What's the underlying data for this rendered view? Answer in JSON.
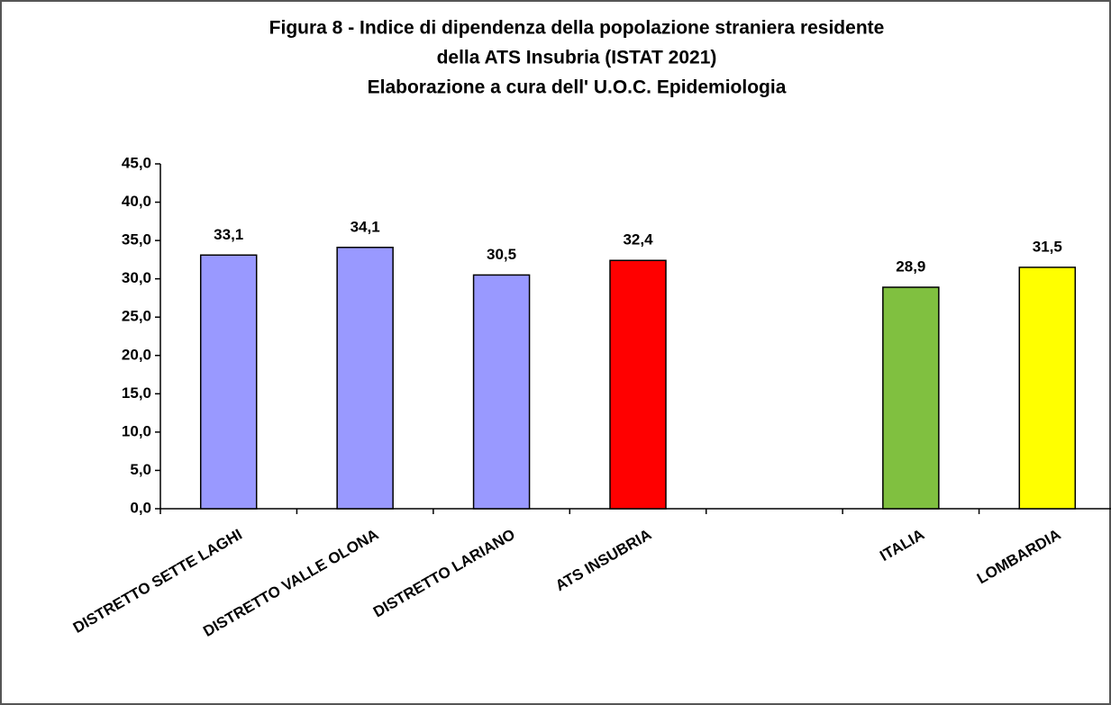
{
  "chart_data": {
    "type": "bar",
    "title": [
      "Figura  8 - Indice di dipendenza della popolazione straniera residente",
      "della  ATS Insubria (ISTAT 2021)",
      "Elaborazione a cura dell' U.O.C. Epidemiologia"
    ],
    "categories": [
      "DISTRETTO SETTE LAGHI",
      "DISTRETTO VALLE OLONA",
      "DISTRETTO LARIANO",
      "ATS INSUBRIA",
      null,
      "ITALIA",
      "LOMBARDIA"
    ],
    "values": [
      33.1,
      34.1,
      30.5,
      32.4,
      null,
      28.9,
      31.5
    ],
    "value_labels": [
      "33,1",
      "34,1",
      "30,5",
      "32,4",
      null,
      "28,9",
      "31,5"
    ],
    "colors": [
      "#9999ff",
      "#9999ff",
      "#9999ff",
      "#ff0000",
      null,
      "#80c040",
      "#ffff00"
    ],
    "ylim": [
      0,
      45
    ],
    "yticks": [
      {
        "value": 0,
        "label": "0,0"
      },
      {
        "value": 5,
        "label": "5,0"
      },
      {
        "value": 10,
        "label": "10,0"
      },
      {
        "value": 15,
        "label": "15,0"
      },
      {
        "value": 20,
        "label": "20,0"
      },
      {
        "value": 25,
        "label": "25,0"
      },
      {
        "value": 30,
        "label": "30,0"
      },
      {
        "value": 35,
        "label": "35,0"
      },
      {
        "value": 40,
        "label": "40,0"
      },
      {
        "value": 45,
        "label": "45,0"
      }
    ],
    "grid": false
  }
}
